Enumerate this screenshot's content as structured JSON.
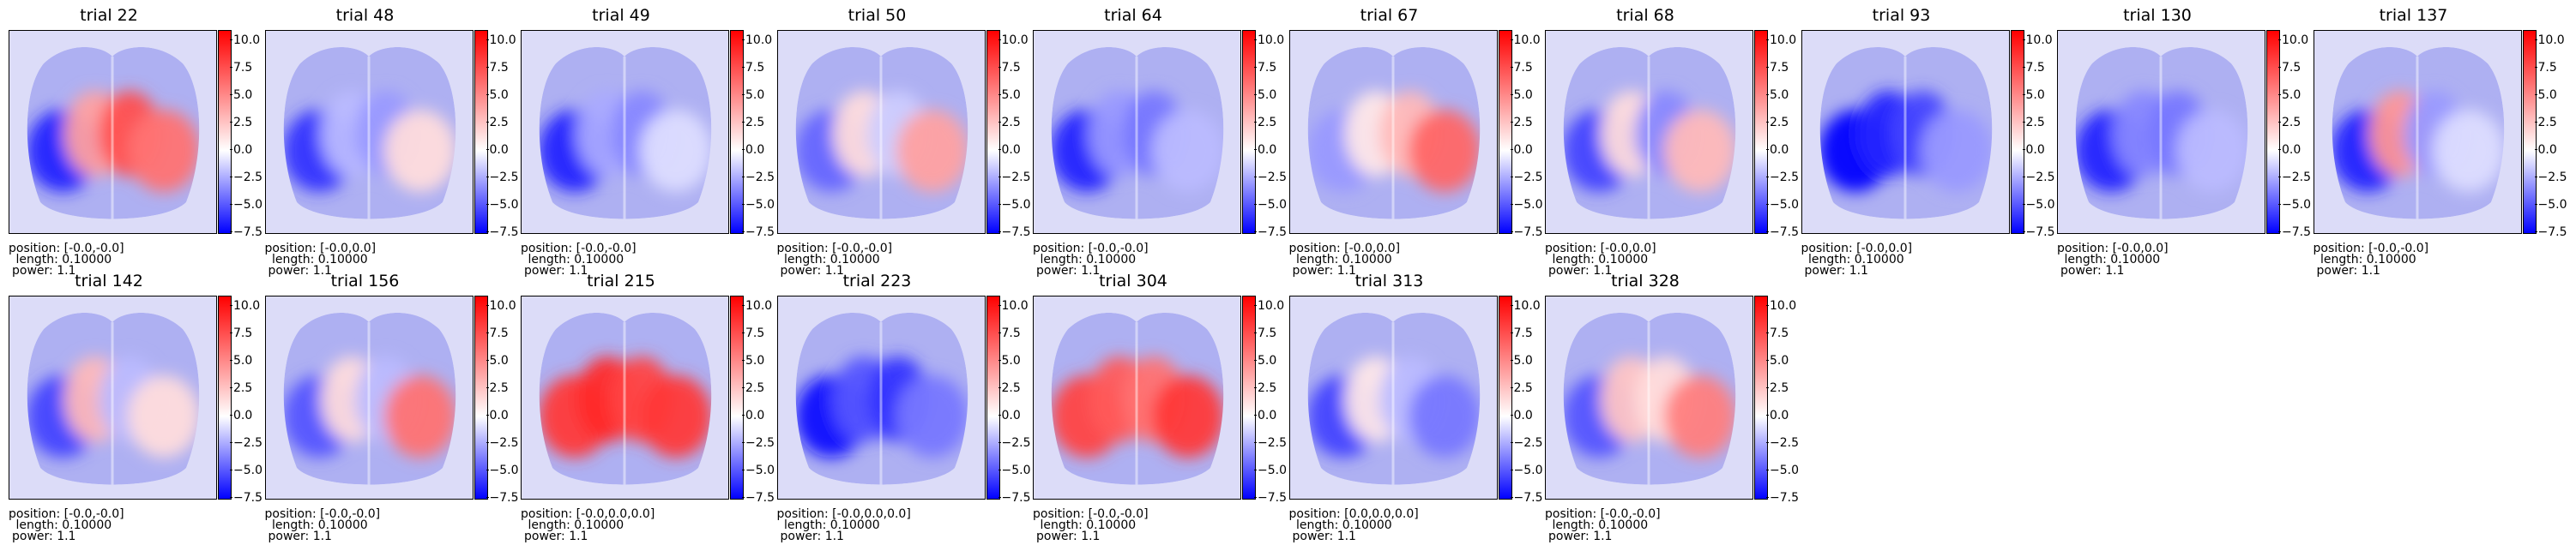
{
  "chart_data": {
    "type": "heatmap",
    "colormap": "bwr",
    "colorbar_range": [
      -7.5,
      10.9
    ],
    "colorbar_ticks": [
      "10.0",
      "7.5",
      "5.0",
      "2.5",
      "0.0",
      "−2.5",
      "−5.0",
      "−7.5"
    ],
    "colorbar_tick_values": [
      10.0,
      7.5,
      5.0,
      2.5,
      0.0,
      -2.5,
      -5.0,
      -7.5
    ],
    "info_labels": {
      "length": "length: 0.10000",
      "power": "power: 1.1"
    },
    "panels": [
      {
        "title": "trial 22",
        "position": "position: [-0.0,-0.0]",
        "activity": [
          -6.5,
          4.0,
          7.5,
          6.0
        ]
      },
      {
        "title": "trial 48",
        "position": "position: [-0.0,0.0]",
        "activity": [
          -6.0,
          -2.0,
          -3.0,
          1.5
        ]
      },
      {
        "title": "trial 49",
        "position": "position: [-0.0,-0.0]",
        "activity": [
          -6.5,
          -2.5,
          -3.5,
          -1.0
        ]
      },
      {
        "title": "trial 50",
        "position": "position: [-0.0,-0.0]",
        "activity": [
          -4.5,
          1.5,
          -1.5,
          4.0
        ]
      },
      {
        "title": "trial 64",
        "position": "position: [-0.0,-0.0]",
        "activity": [
          -6.5,
          -3.0,
          -4.0,
          -2.0
        ]
      },
      {
        "title": "trial 67",
        "position": "position: [-0.0,0.0]",
        "activity": [
          -3.0,
          1.0,
          3.0,
          6.5
        ]
      },
      {
        "title": "trial 68",
        "position": "position: [-0.0,0.0]",
        "activity": [
          -5.5,
          1.5,
          -3.5,
          3.0
        ]
      },
      {
        "title": "trial 93",
        "position": "position: [-0.0,0.0]",
        "activity": [
          -7.5,
          -6.5,
          -5.5,
          -3.0
        ]
      },
      {
        "title": "trial 130",
        "position": "position: [-0.0,0.0]",
        "activity": [
          -6.5,
          -3.5,
          -4.0,
          -2.0
        ]
      },
      {
        "title": "trial 137",
        "position": "position: [-0.0,-0.0]",
        "activity": [
          -6.5,
          4.5,
          -3.0,
          -1.0
        ]
      },
      {
        "title": "trial 142",
        "position": "position: [-0.0,-0.0]",
        "activity": [
          -5.5,
          3.0,
          -2.0,
          1.5
        ]
      },
      {
        "title": "trial 156",
        "position": "position: [-0.0,-0.0]",
        "activity": [
          -5.0,
          1.5,
          -2.0,
          6.0
        ]
      },
      {
        "title": "trial 215",
        "position": "position: [-0.0,0.0,0.0]",
        "activity": [
          8.5,
          9.0,
          8.0,
          8.5
        ]
      },
      {
        "title": "trial 223",
        "position": "position: [-0.0,0.0,0.0]",
        "activity": [
          -7.0,
          -5.0,
          -6.0,
          -4.0
        ]
      },
      {
        "title": "trial 304",
        "position": "position: [-0.0,-0.0]",
        "activity": [
          8.0,
          7.0,
          6.0,
          8.5
        ]
      },
      {
        "title": "trial 313",
        "position": "position: [0.0,0.0,0.0]",
        "activity": [
          -5.5,
          1.0,
          -2.0,
          -4.0
        ]
      },
      {
        "title": "trial 328",
        "position": "position: [-0.0,-0.0]",
        "activity": [
          -5.0,
          2.5,
          1.5,
          5.5
        ]
      }
    ]
  }
}
